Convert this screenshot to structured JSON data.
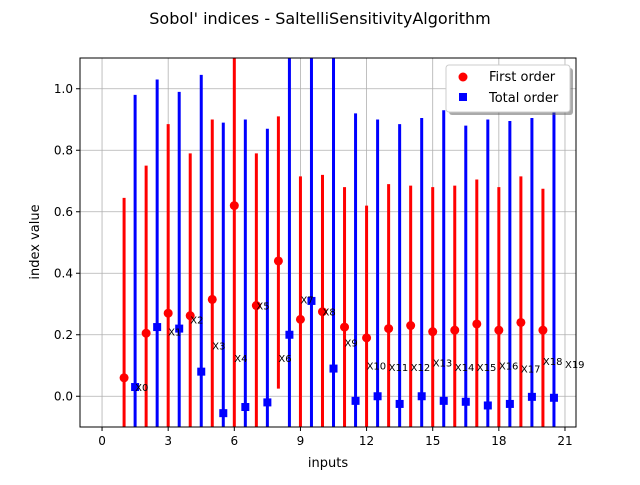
{
  "chart_data": {
    "type": "scatter",
    "title": "Sobol' indices - SaltelliSensitivityAlgorithm",
    "xlabel": "inputs",
    "ylabel": "index value",
    "xlim": [
      -1,
      21.5
    ],
    "ylim": [
      -0.1,
      1.1
    ],
    "xticks": [
      0,
      3,
      6,
      9,
      12,
      15,
      18,
      21
    ],
    "xtick_labels": [
      "0",
      "3",
      "6",
      "9",
      "12",
      "15",
      "18",
      "21"
    ],
    "yticks": [
      0.0,
      0.2,
      0.4,
      0.6,
      0.8,
      1.0
    ],
    "ytick_labels": [
      "0.0",
      "0.2",
      "0.4",
      "0.6",
      "0.8",
      "1.0"
    ],
    "grid": true,
    "legend_position": "top-right",
    "variables": [
      "X0",
      "X1",
      "X2",
      "X3",
      "X4",
      "X5",
      "X6",
      "X7",
      "X8",
      "X9",
      "X10",
      "X11",
      "X12",
      "X13",
      "X14",
      "X15",
      "X16",
      "X17",
      "X18",
      "X19"
    ],
    "series": [
      {
        "name": "First order",
        "color": "#ff0000",
        "marker": "circle",
        "x": [
          1,
          2,
          3,
          4,
          5,
          6,
          7,
          8,
          9,
          10,
          11,
          12,
          13,
          14,
          15,
          16,
          17,
          18,
          19,
          20
        ],
        "values": [
          0.06,
          0.205,
          0.27,
          0.262,
          0.315,
          0.62,
          0.295,
          0.44,
          0.25,
          0.275,
          0.225,
          0.19,
          0.22,
          0.23,
          0.21,
          0.215,
          0.235,
          0.215,
          0.24,
          0.215
        ],
        "ci_low": [
          -0.1,
          -0.1,
          -0.1,
          -0.1,
          -0.1,
          -0.1,
          -0.1,
          0.025,
          -0.1,
          -0.1,
          -0.1,
          -0.1,
          -0.1,
          -0.1,
          -0.1,
          -0.1,
          -0.1,
          -0.1,
          -0.1,
          -0.1
        ],
        "ci_high": [
          0.645,
          0.75,
          0.885,
          0.79,
          0.9,
          1.1,
          0.79,
          0.91,
          0.715,
          0.72,
          0.68,
          0.62,
          0.69,
          0.685,
          0.68,
          0.685,
          0.705,
          0.68,
          0.715,
          0.675
        ]
      },
      {
        "name": "Total order",
        "color": "#0000ff",
        "marker": "square",
        "x": [
          1.5,
          2.5,
          3.5,
          4.5,
          5.5,
          6.5,
          7.5,
          8.5,
          9.5,
          10.5,
          11.5,
          12.5,
          13.5,
          14.5,
          15.5,
          16.5,
          17.5,
          18.5,
          19.5,
          20.5
        ],
        "values": [
          0.03,
          0.225,
          0.22,
          0.08,
          -0.055,
          -0.035,
          -0.02,
          0.2,
          0.31,
          0.09,
          -0.015,
          0.0,
          -0.025,
          0.0,
          -0.015,
          -0.018,
          -0.03,
          -0.025,
          -0.002,
          -0.005
        ],
        "ci_low": [
          -0.1,
          -0.1,
          -0.1,
          -0.1,
          -0.1,
          -0.1,
          -0.1,
          -0.1,
          -0.1,
          -0.1,
          -0.1,
          -0.1,
          -0.1,
          -0.1,
          -0.1,
          -0.1,
          -0.1,
          -0.1,
          -0.1,
          -0.1
        ],
        "ci_high": [
          0.98,
          1.03,
          0.99,
          1.045,
          0.89,
          0.9,
          0.87,
          1.1,
          1.1,
          1.1,
          0.92,
          0.9,
          0.885,
          0.905,
          0.93,
          0.88,
          0.9,
          0.895,
          0.905,
          0.94
        ]
      }
    ],
    "annotations": [
      {
        "text": "X0",
        "x": 1.5,
        "y": 0.03
      },
      {
        "text": "X1",
        "x": 3.0,
        "y": 0.21
      },
      {
        "text": "X2",
        "x": 4.0,
        "y": 0.25
      },
      {
        "text": "X3",
        "x": 5.0,
        "y": 0.165
      },
      {
        "text": "X4",
        "x": 6.0,
        "y": 0.125
      },
      {
        "text": "X5",
        "x": 7.0,
        "y": 0.295
      },
      {
        "text": "X6",
        "x": 8.0,
        "y": 0.125
      },
      {
        "text": "X7",
        "x": 9.0,
        "y": 0.315
      },
      {
        "text": "X8",
        "x": 10.0,
        "y": 0.275
      },
      {
        "text": "X9",
        "x": 11.0,
        "y": 0.175
      },
      {
        "text": "X10",
        "x": 12.0,
        "y": 0.1
      },
      {
        "text": "X11",
        "x": 13.0,
        "y": 0.095
      },
      {
        "text": "X12",
        "x": 14.0,
        "y": 0.095
      },
      {
        "text": "X13",
        "x": 15.0,
        "y": 0.11
      },
      {
        "text": "X14",
        "x": 16.0,
        "y": 0.095
      },
      {
        "text": "X15",
        "x": 17.0,
        "y": 0.095
      },
      {
        "text": "X16",
        "x": 18.0,
        "y": 0.1
      },
      {
        "text": "X17",
        "x": 19.0,
        "y": 0.09
      },
      {
        "text": "X18",
        "x": 20.0,
        "y": 0.115
      },
      {
        "text": "X19",
        "x": 21.0,
        "y": 0.105
      }
    ]
  }
}
